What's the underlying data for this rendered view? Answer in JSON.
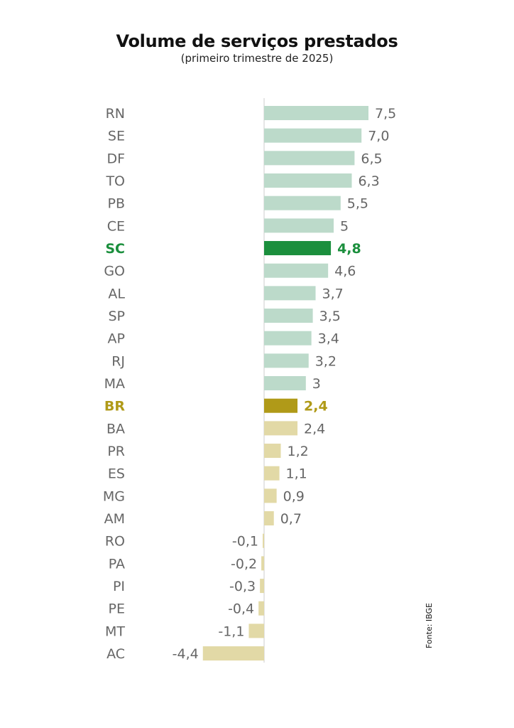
{
  "chart_data": {
    "type": "bar",
    "orientation": "horizontal",
    "title": "Volume de serviços prestados",
    "subtitle": "(primeiro trimestre de 2025)",
    "source": "Fonte: IBGE",
    "categories": [
      "RN",
      "SE",
      "DF",
      "TO",
      "PB",
      "CE",
      "SC",
      "GO",
      "AL",
      "SP",
      "AP",
      "RJ",
      "MA",
      "BR",
      "BA",
      "PR",
      "ES",
      "MG",
      "AM",
      "RO",
      "PA",
      "PI",
      "PE",
      "MT",
      "AC"
    ],
    "values": [
      7.5,
      7.0,
      6.5,
      6.3,
      5.5,
      5,
      4.8,
      4.6,
      3.7,
      3.5,
      3.4,
      3.2,
      3,
      2.4,
      2.4,
      1.2,
      1.1,
      0.9,
      0.7,
      -0.1,
      -0.2,
      -0.3,
      -0.4,
      -1.1,
      -4.4
    ],
    "value_labels": [
      "7,5",
      "7,0",
      "6,5",
      "6,3",
      "5,5",
      "5",
      "4,8",
      "4,6",
      "3,7",
      "3,5",
      "3,4",
      "3,2",
      "3",
      "2,4",
      "2,4",
      "1,2",
      "1,1",
      "0,9",
      "0,7",
      "-0,1",
      "-0,2",
      "-0,3",
      "-0,4",
      "-1,1",
      "-4,4"
    ],
    "highlights": {
      "SC": "#1b8f3d",
      "BR": "#b09a18"
    },
    "colors": {
      "above_br": "#bcdaca",
      "below_br": "#e2d9a6",
      "label": "#666666",
      "axis": "#cccccc"
    },
    "xlabel": "",
    "ylabel": "",
    "grid": false
  }
}
